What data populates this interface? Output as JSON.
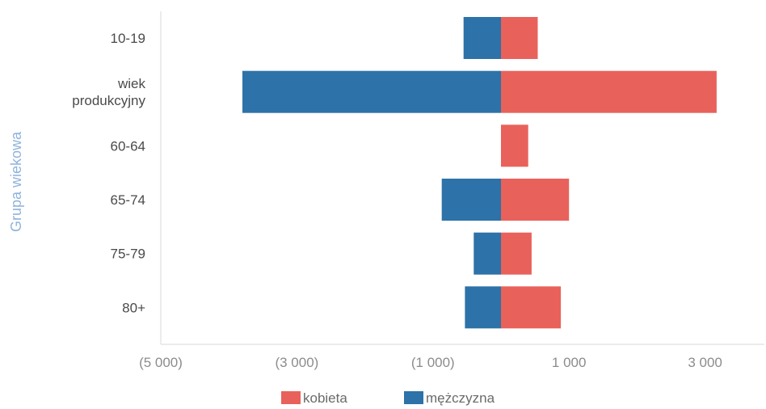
{
  "chart_data": {
    "type": "bar",
    "orientation": "horizontal",
    "stacked": true,
    "ylabel": "Grupa wiekowa",
    "xlabel": "",
    "categories": [
      [
        "10-19"
      ],
      [
        "wiek",
        "produkcyjny"
      ],
      [
        "60-64"
      ],
      [
        "65-74"
      ],
      [
        "75-79"
      ],
      [
        "80+"
      ]
    ],
    "series": [
      {
        "name": "kobieta",
        "color": "#e8625b",
        "values": [
          540,
          3170,
          400,
          1000,
          450,
          880
        ]
      },
      {
        "name": "mężczyzna",
        "color": "#2d72a8",
        "values": [
          -550,
          -3800,
          0,
          -870,
          -400,
          -530
        ]
      }
    ],
    "xlim": [
      -5000,
      3800
    ],
    "xticks": [
      -5000,
      -3000,
      -1000,
      1000,
      3000
    ],
    "xtick_labels": [
      "(5 000)",
      "(3 000)",
      "(1 000)",
      "1 000",
      "3 000"
    ],
    "grid": false,
    "legend": {
      "position": "bottom",
      "entries": [
        "kobieta",
        "mężczyzna"
      ]
    }
  }
}
